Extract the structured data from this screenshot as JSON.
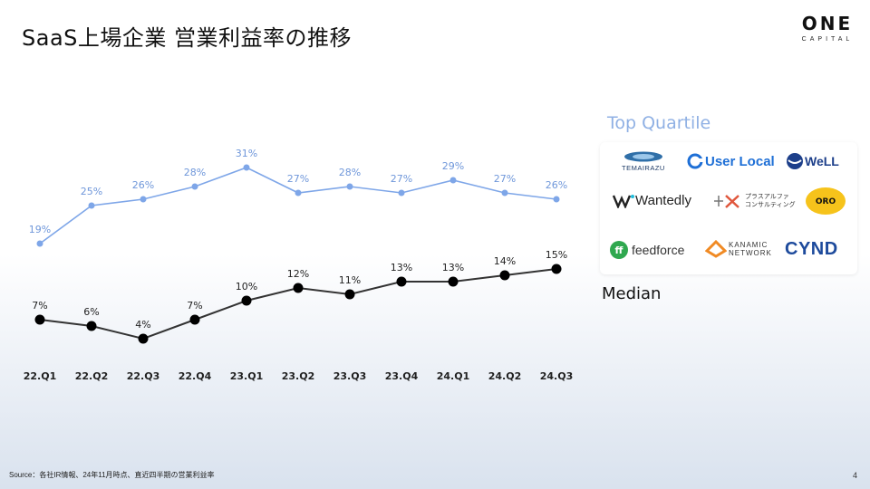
{
  "header": {
    "title": "SaaS上場企業 営業利益率の推移"
  },
  "brand": {
    "main": "ONE",
    "sub": "CAPITAL"
  },
  "chart_data": {
    "type": "line",
    "categories": [
      "22.Q1",
      "22.Q2",
      "22.Q3",
      "22.Q4",
      "23.Q1",
      "23.Q2",
      "23.Q3",
      "23.Q4",
      "24.Q1",
      "24.Q2",
      "24.Q3"
    ],
    "series": [
      {
        "name": "Top Quartile",
        "values": [
          19,
          25,
          26,
          28,
          31,
          27,
          28,
          27,
          29,
          27,
          26
        ],
        "color": "#7ea6e8",
        "label_color": "#6f97da"
      },
      {
        "name": "Median",
        "values": [
          7,
          6,
          4,
          7,
          10,
          12,
          11,
          13,
          13,
          14,
          15
        ],
        "color": "#333333",
        "label_color": "#222222"
      }
    ],
    "value_suffix": "%",
    "grid": false
  },
  "legend": {
    "top_quartile": "Top Quartile",
    "median": "Median",
    "logos": [
      "TEMAIRAZU",
      "User Local",
      "WeLL",
      "Wantedly",
      "プラスアルファ コンサルティング",
      "ORO",
      "feedforce",
      "KANAMIC NETWORK",
      "CYND"
    ]
  },
  "footer": {
    "source": "Source：各社IR情報、24年11月時点、直近四半期の営業利益率",
    "page": "4"
  }
}
